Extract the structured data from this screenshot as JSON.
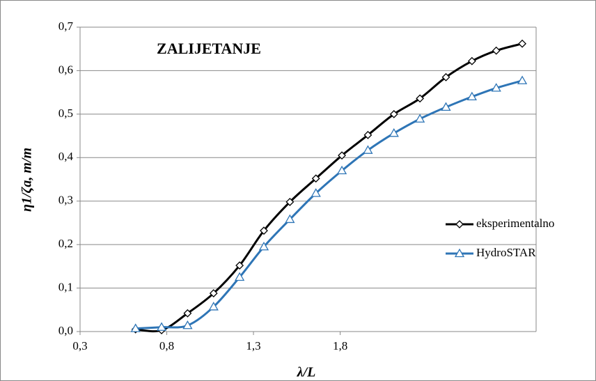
{
  "chart_data": {
    "type": "line",
    "title": "ZALIJETANJE",
    "x_label": "λ/L",
    "y_label": "η1/ζa, m/m",
    "x": [
      0.62,
      0.77,
      0.92,
      1.07,
      1.22,
      1.36,
      1.51,
      1.66,
      1.81,
      1.96,
      2.11,
      2.26,
      2.41,
      2.56,
      2.7,
      2.85
    ],
    "series": [
      {
        "name": "eksperimentalno",
        "color": "#000000",
        "marker": "diamond",
        "values": [
          0.005,
          0.003,
          0.042,
          0.088,
          0.152,
          0.232,
          0.298,
          0.352,
          0.405,
          0.452,
          0.5,
          0.536,
          0.585,
          0.622,
          0.646,
          0.662
        ]
      },
      {
        "name": "HydroSTAR",
        "color": "#2e75b6",
        "marker": "triangle",
        "values": [
          0.007,
          0.01,
          0.014,
          0.057,
          0.125,
          0.195,
          0.258,
          0.318,
          0.37,
          0.417,
          0.456,
          0.489,
          0.516,
          0.54,
          0.56,
          0.577
        ]
      }
    ],
    "xlim": [
      0.3,
      2.93
    ],
    "xticks": [
      {
        "value": 0.3,
        "label": "0,3"
      },
      {
        "value": 0.8,
        "label": "0,8"
      },
      {
        "value": 1.3,
        "label": "1,3"
      },
      {
        "value": 1.8,
        "label": "1,8"
      }
    ],
    "ylim": [
      0,
      0.7
    ],
    "yticks": [
      {
        "value": 0,
        "label": "0,0"
      },
      {
        "value": 0.1,
        "label": "0,1"
      },
      {
        "value": 0.2,
        "label": "0,2"
      },
      {
        "value": 0.3,
        "label": "0,3"
      },
      {
        "value": 0.4,
        "label": "0,4"
      },
      {
        "value": 0.5,
        "label": "0,5"
      },
      {
        "value": 0.6,
        "label": "0,6"
      },
      {
        "value": 0.7,
        "label": "0,7"
      }
    ],
    "grid": true,
    "legend": "right"
  }
}
